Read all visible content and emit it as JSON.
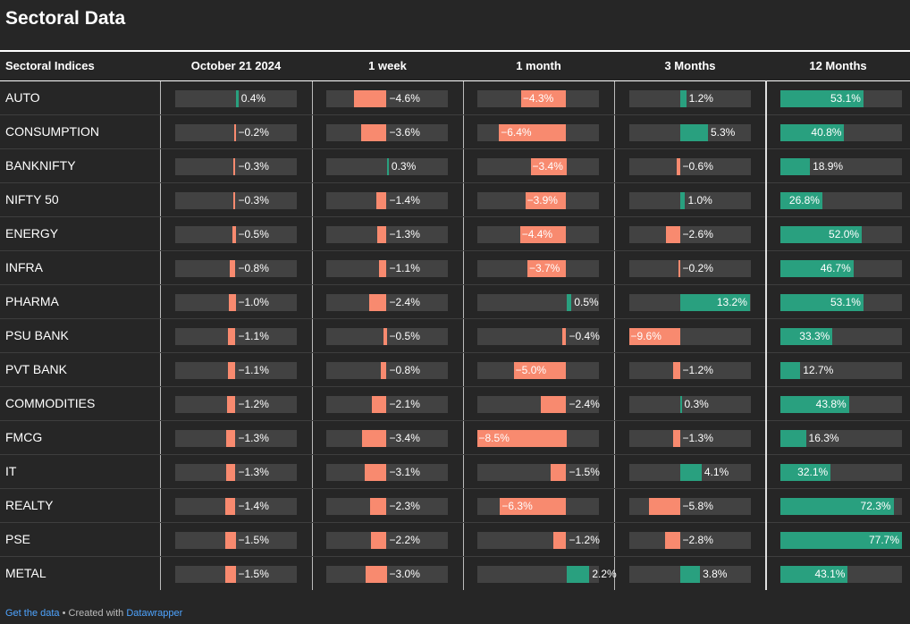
{
  "title": "Sectoral Data",
  "footer": {
    "link_label": "Get the data",
    "separator": " • Created with ",
    "tool_label": "Datawrapper"
  },
  "colors": {
    "positive": "#29a07f",
    "negative": "#f88a6f",
    "track": "#424242"
  },
  "chart_data": {
    "type": "table",
    "label_header": "Sectoral Indices",
    "columns": [
      {
        "header": "October 21 2024",
        "type": "diverging",
        "min": -8.5,
        "max": 8.5
      },
      {
        "header": "1 week",
        "type": "diverging",
        "min": -8.5,
        "max": 8.5
      },
      {
        "header": "1 month",
        "type": "diverging",
        "min": -8.5,
        "max": 8.5
      },
      {
        "header": "3 Months",
        "type": "diverging",
        "min": -13.2,
        "max": 13.2
      },
      {
        "header": "12 Months",
        "type": "positive",
        "min": 0,
        "max": 77.7
      }
    ],
    "rows": [
      {
        "label": "AUTO",
        "values": [
          0.4,
          -4.6,
          -4.3,
          1.2,
          53.1
        ]
      },
      {
        "label": "CONSUMPTION",
        "values": [
          -0.2,
          -3.6,
          -6.4,
          5.3,
          40.8
        ]
      },
      {
        "label": "BANKNIFTY",
        "values": [
          -0.3,
          0.3,
          -3.4,
          -0.6,
          18.9
        ]
      },
      {
        "label": "NIFTY 50",
        "values": [
          -0.3,
          -1.4,
          -3.9,
          1.0,
          26.8
        ]
      },
      {
        "label": "ENERGY",
        "values": [
          -0.5,
          -1.3,
          -4.4,
          -2.6,
          52.0
        ]
      },
      {
        "label": "INFRA",
        "values": [
          -0.8,
          -1.1,
          -3.7,
          -0.2,
          46.7
        ]
      },
      {
        "label": "PHARMA",
        "values": [
          -1.0,
          -2.4,
          0.5,
          13.2,
          53.1
        ]
      },
      {
        "label": "PSU BANK",
        "values": [
          -1.1,
          -0.5,
          -0.4,
          -9.6,
          33.3
        ]
      },
      {
        "label": "PVT BANK",
        "values": [
          -1.1,
          -0.8,
          -5.0,
          -1.2,
          12.7
        ]
      },
      {
        "label": "COMMODITIES",
        "values": [
          -1.2,
          -2.1,
          -2.4,
          0.3,
          43.8
        ]
      },
      {
        "label": "FMCG",
        "values": [
          -1.3,
          -3.4,
          -8.5,
          -1.3,
          16.3
        ]
      },
      {
        "label": "IT",
        "values": [
          -1.3,
          -3.1,
          -1.5,
          4.1,
          32.1
        ]
      },
      {
        "label": "REALTY",
        "values": [
          -1.4,
          -2.3,
          -6.3,
          -5.8,
          72.3
        ]
      },
      {
        "label": "PSE",
        "values": [
          -1.5,
          -2.2,
          -1.2,
          -2.8,
          77.7
        ]
      },
      {
        "label": "METAL",
        "values": [
          -1.5,
          -3.0,
          2.2,
          3.8,
          43.1
        ]
      }
    ]
  }
}
